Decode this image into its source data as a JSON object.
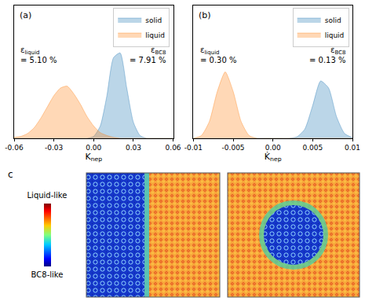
{
  "chart_data": [
    {
      "type": "density",
      "panel_label": "(a)",
      "xlabel": {
        "text": "K",
        "subscript": "nep"
      },
      "x": [
        -0.06,
        -0.055,
        -0.05,
        -0.045,
        -0.04,
        -0.035,
        -0.03,
        -0.025,
        -0.02,
        -0.015,
        -0.01,
        -0.005,
        0,
        0.005,
        0.01,
        0.015,
        0.02,
        0.025,
        0.03,
        0.035,
        0.04,
        0.045,
        0.05,
        0.055,
        0.06
      ],
      "series": [
        {
          "name": "solid",
          "color": "#1f77b4",
          "values": [
            0,
            0,
            0,
            0,
            0,
            0,
            0,
            0,
            0,
            0,
            0,
            0,
            0.02,
            0.13,
            0.45,
            0.85,
            0.9,
            0.53,
            0.17,
            0.03,
            0,
            0,
            0,
            0,
            0
          ]
        },
        {
          "name": "liquid",
          "color": "#ff7f0e",
          "values": [
            0.01,
            0.02,
            0.05,
            0.11,
            0.21,
            0.33,
            0.45,
            0.53,
            0.55,
            0.47,
            0.36,
            0.23,
            0.13,
            0.06,
            0.03,
            0.01,
            0,
            0,
            0,
            0,
            0,
            0,
            0,
            0,
            0
          ]
        }
      ],
      "annotations": [
        {
          "symbol": "ε",
          "subscript": "liquid",
          "text": "= 5.10 %"
        },
        {
          "symbol": "ε",
          "subscript": "BC8",
          "text": "= 7.91 %"
        }
      ],
      "xlim": [
        -0.06,
        0.06
      ],
      "xticks": [
        -0.06,
        -0.03,
        {
          "value": 0,
          "label": "0.00"
        },
        0.03,
        0.06
      ],
      "ylim": [
        0,
        1.4
      ],
      "tick_labels": "x",
      "grid": false,
      "legend": "upper right"
    },
    {
      "type": "density",
      "panel_label": "(b)",
      "xlabel": {
        "text": "K̇",
        "subscript": "nep"
      },
      "x": [
        -0.01,
        -0.009,
        -0.008,
        -0.007,
        -0.006,
        -0.005,
        -0.004,
        -0.003,
        -0.002,
        -0.001,
        0,
        0.001,
        0.002,
        0.003,
        0.004,
        0.005,
        0.006,
        0.007,
        0.008,
        0.009,
        0.01
      ],
      "series": [
        {
          "name": "solid",
          "color": "#1f77b4",
          "values": [
            0,
            0,
            0,
            0,
            0,
            0,
            0,
            0,
            0,
            0,
            0,
            0,
            0,
            0.02,
            0.13,
            0.47,
            0.82,
            0.72,
            0.31,
            0.07,
            0.01
          ]
        },
        {
          "name": "liquid",
          "color": "#ff7f0e",
          "values": [
            0,
            0.04,
            0.24,
            0.67,
            0.95,
            0.67,
            0.24,
            0.04,
            0,
            0,
            0,
            0,
            0,
            0,
            0,
            0,
            0,
            0,
            0,
            0,
            0
          ]
        }
      ],
      "annotations": [
        {
          "symbol": "ε",
          "subscript": "liquid",
          "text": "= 0.30 %"
        },
        {
          "symbol": "ε",
          "subscript": "BC8",
          "text": "= 0.13 %"
        }
      ],
      "xlim": [
        -0.01,
        0.01
      ],
      "xticks": [
        -0.01,
        -0.005,
        {
          "value": 0,
          "label": "0.00"
        },
        0.005,
        0.01
      ],
      "ylim": [
        0,
        1.9
      ],
      "tick_labels": "x",
      "grid": false,
      "legend": "upper right"
    }
  ],
  "panel_c": {
    "panel_label": "c",
    "colorbar": {
      "top": "Liquid-like",
      "bottom": "BC8-like"
    }
  }
}
